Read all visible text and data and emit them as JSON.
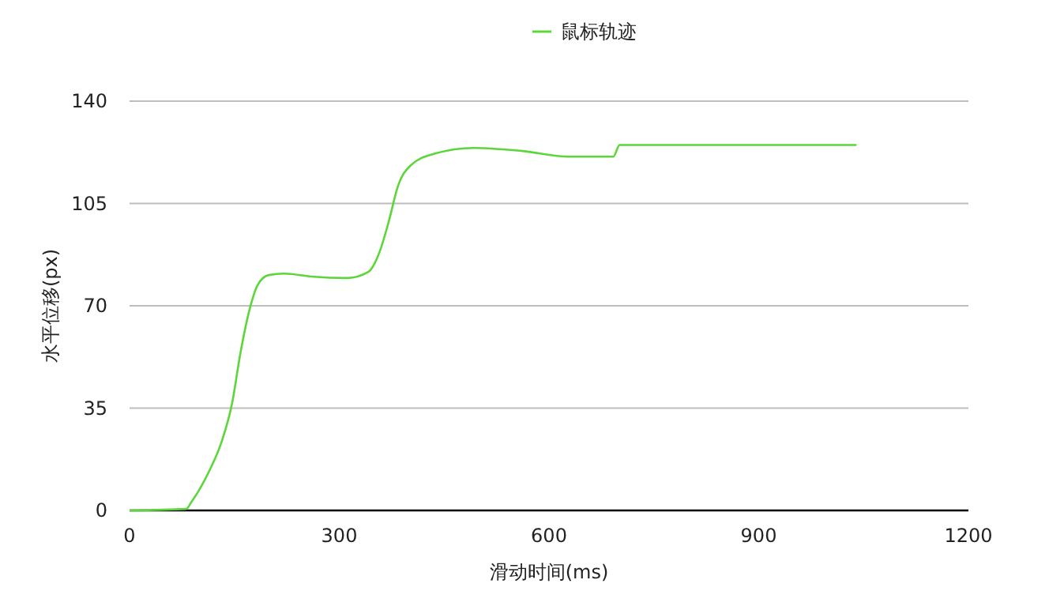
{
  "chart_data": {
    "type": "line",
    "xlabel": "滑动时间(ms)",
    "ylabel": "水平位移(px)",
    "xlim": [
      0,
      1200
    ],
    "xticks": [
      0,
      300,
      600,
      900,
      1200
    ],
    "ylim": [
      0,
      140
    ],
    "yticks": [
      0,
      35,
      70,
      105,
      140
    ],
    "grid": "y",
    "legend": "top",
    "marker": "none",
    "line_style": "solid",
    "series": [
      {
        "name": "鼠标轨迹",
        "color": "#5cd63a",
        "x": [
          0,
          81,
          88,
          115,
          131,
          147,
          158,
          172,
          183,
          199,
          221,
          260,
          312,
          341,
          357,
          371,
          384,
          402,
          436,
          493,
          560,
          628,
          692,
          701,
          719,
          1040
        ],
        "values": [
          0,
          0.5,
          2.7,
          14,
          23,
          37,
          53,
          69,
          77,
          80.5,
          81,
          80,
          79.5,
          81.5,
          88,
          99,
          111,
          118,
          122,
          124,
          123,
          121,
          121,
          125,
          125,
          125
        ]
      }
    ]
  }
}
